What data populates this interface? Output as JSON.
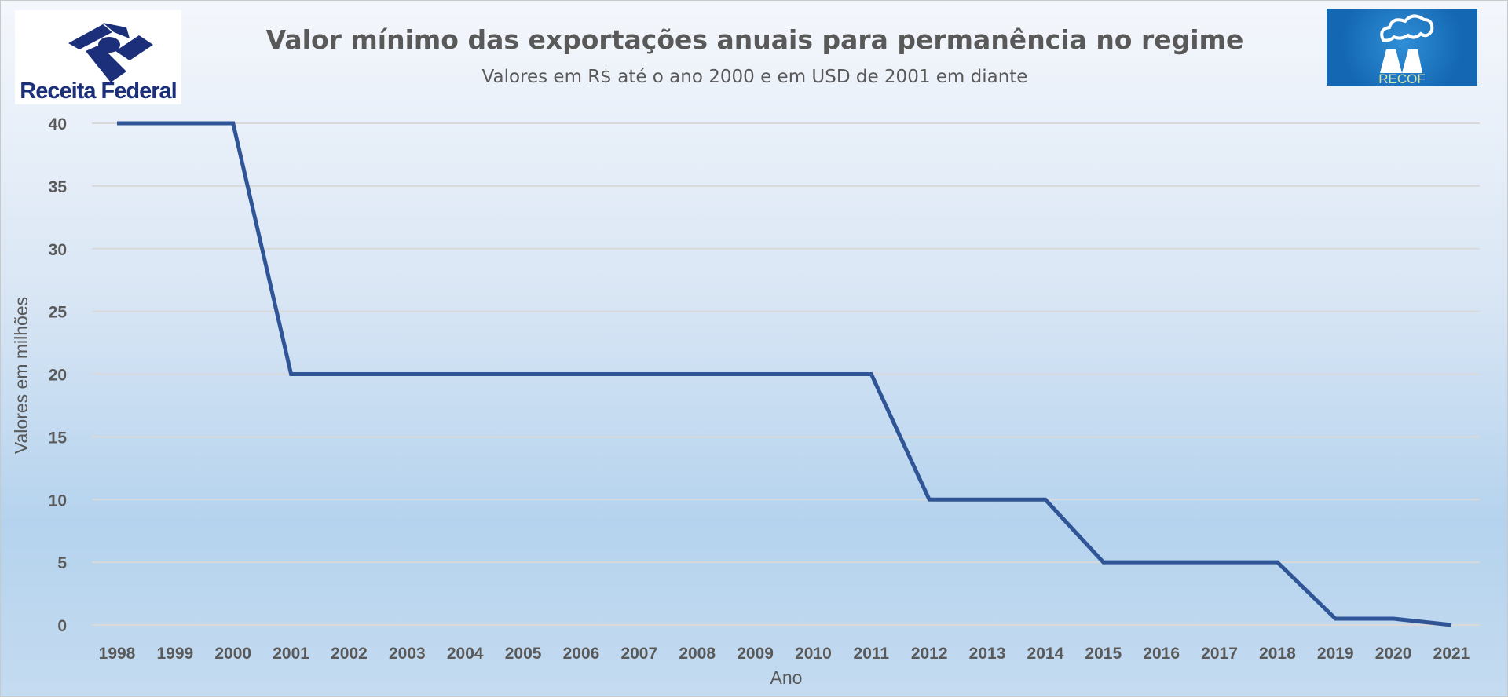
{
  "logos": {
    "left": {
      "text": "Receita Federal",
      "color": "#1b2f7a"
    },
    "right": {
      "text": "RECOF",
      "color": "#1467b3"
    }
  },
  "chart_data": {
    "type": "line",
    "title": "Valor mínimo das exportações anuais para permanência no regime",
    "subtitle": "Valores em R$ até o ano 2000 e em USD de 2001 em diante",
    "xlabel": "Ano",
    "ylabel": "Valores em milhões",
    "ylim": [
      0,
      40
    ],
    "yticks": [
      0,
      5,
      10,
      15,
      20,
      25,
      30,
      35,
      40
    ],
    "grid": true,
    "line_color": "#2f5597",
    "categories": [
      "1998",
      "1999",
      "2000",
      "2001",
      "2002",
      "2003",
      "2004",
      "2005",
      "2006",
      "2007",
      "2008",
      "2009",
      "2010",
      "2011",
      "2012",
      "2013",
      "2014",
      "2015",
      "2016",
      "2017",
      "2018",
      "2019",
      "2020",
      "2021"
    ],
    "values": [
      40,
      40,
      40,
      20,
      20,
      20,
      20,
      20,
      20,
      20,
      20,
      20,
      20,
      20,
      10,
      10,
      10,
      5,
      5,
      5,
      5,
      0.5,
      0.5,
      0
    ]
  }
}
